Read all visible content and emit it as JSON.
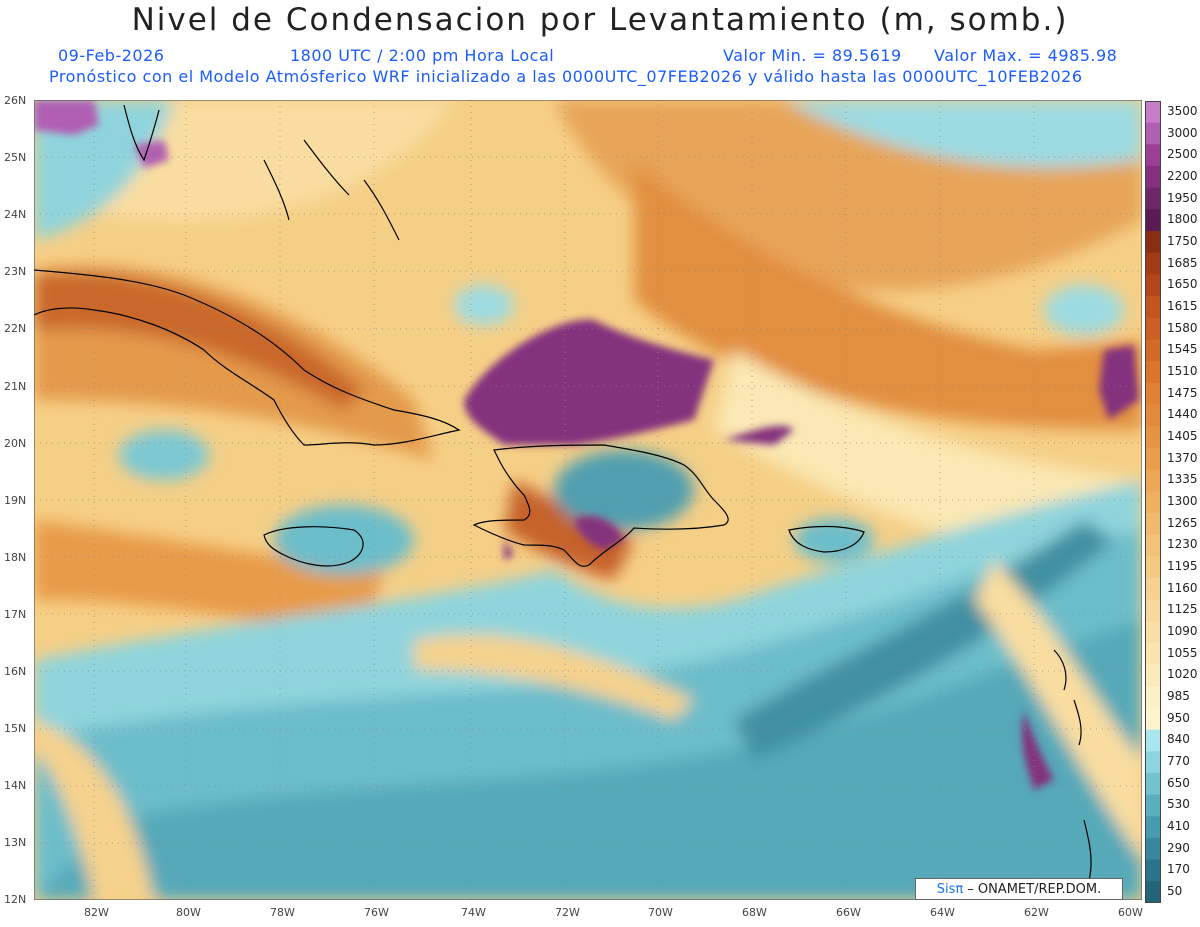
{
  "title": "Nivel de Condensacion por Levantamiento (m, somb.)",
  "date": "09-Feb-2026",
  "time": "1800 UTC / 2:00 pm Hora Local",
  "min_label": "Valor Min. = 89.5619",
  "max_label": "Valor Max. = 4985.98",
  "model_line": "Pronóstico con el Modelo Atmósferico WRF inicializado a las 0000UTC_07FEB2026 y válido hasta las  0000UTC_10FEB2026",
  "credit": {
    "logo": "Sisπ",
    "text": "– ONAMET/REP.DOM."
  },
  "lat_labels": [
    "26N",
    "25N",
    "24N",
    "23N",
    "22N",
    "21N",
    "20N",
    "19N",
    "18N",
    "17N",
    "16N",
    "15N",
    "14N",
    "13N",
    "12N"
  ],
  "lon_labels": [
    "82W",
    "80W",
    "78W",
    "76W",
    "74W",
    "72W",
    "70W",
    "68W",
    "66W",
    "64W",
    "62W",
    "60W"
  ],
  "colorbar": {
    "labels": [
      "3500",
      "3000",
      "2500",
      "2200",
      "1950",
      "1800",
      "1750",
      "1685",
      "1650",
      "1615",
      "1580",
      "1545",
      "1510",
      "1475",
      "1440",
      "1405",
      "1370",
      "1335",
      "1300",
      "1265",
      "1230",
      "1195",
      "1160",
      "1125",
      "1090",
      "1055",
      "1020",
      "985",
      "950",
      "840",
      "770",
      "650",
      "530",
      "410",
      "290",
      "170",
      "50"
    ],
    "colors": [
      "#c77dc7",
      "#b15fb3",
      "#9a3f95",
      "#84307e",
      "#6e2668",
      "#5a1c52",
      "#8a2e12",
      "#a33b17",
      "#b3471b",
      "#c2541f",
      "#cc5f24",
      "#d46a28",
      "#db752d",
      "#e08033",
      "#e38a3a",
      "#e69443",
      "#e99d4d",
      "#eca757",
      "#efb062",
      "#f1b96d",
      "#f3c178",
      "#f5c983",
      "#f7d18f",
      "#f8d89b",
      "#f9dfa6",
      "#fae5b1",
      "#fbebbc",
      "#fcf0c6",
      "#fdf4cf",
      "#a9e6ed",
      "#8dd5de",
      "#73c3cf",
      "#5aafbf",
      "#479bae",
      "#38879d",
      "#2b738b",
      "#236479"
    ]
  }
}
